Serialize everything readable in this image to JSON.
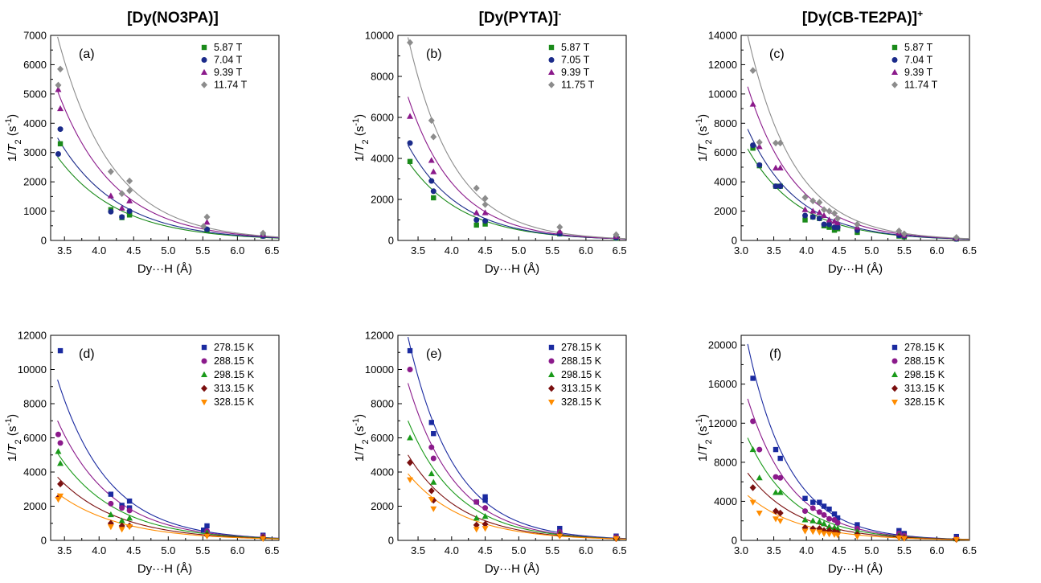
{
  "columns": [
    {
      "name": "[Dy(NO3PA)]",
      "sup": ""
    },
    {
      "name": "[Dy(PYTA)]",
      "sup": "-"
    },
    {
      "name": "[Dy(CB-TE2PA)]",
      "sup": "+"
    }
  ],
  "colors": {
    "5.87 T": "#1a8a1a",
    "7.04 T": "#1b2b8a",
    "7.05 T": "#1b2b8a",
    "9.39 T": "#8b1a8b",
    "11.74 T": "#8c8c8c",
    "11.75 T": "#8c8c8c",
    "278.15 K": "#1a2aa0",
    "288.15 K": "#8b1a8b",
    "298.15 K": "#1a9a1a",
    "313.15 K": "#7a0f0f",
    "328.15 K": "#ff8c00"
  },
  "chart_data": [
    {
      "type": "scatter",
      "panel": "(a)",
      "xlabel": "Dy···H (Å)",
      "ylabel": "1/T2 (s-1)",
      "xlim": [
        3.3,
        6.6
      ],
      "ylim": [
        0,
        7000
      ],
      "xticks": [
        "3.5",
        "4.0",
        "4.5",
        "5.0",
        "5.5",
        "6.0",
        "6.5"
      ],
      "yticks": [
        "0",
        "1000",
        "2000",
        "3000",
        "4000",
        "5000",
        "6000",
        "7000"
      ],
      "series": [
        {
          "name": "5.87 T",
          "marker": "square",
          "x": [
            3.44,
            4.17,
            4.33,
            4.44,
            4.44,
            5.56,
            6.37
          ],
          "y": [
            3300,
            1050,
            780,
            870,
            950,
            350,
            150
          ],
          "fit": [
            3.4,
            2850,
            1.12
          ]
        },
        {
          "name": "7.04 T",
          "marker": "circle",
          "x": [
            3.41,
            3.44,
            4.17,
            4.33,
            4.44,
            5.56,
            6.37
          ],
          "y": [
            2950,
            3800,
            980,
            800,
            1000,
            380,
            150
          ],
          "fit": [
            3.4,
            3500,
            1.15
          ]
        },
        {
          "name": "9.39 T",
          "marker": "triangle",
          "x": [
            3.41,
            3.44,
            4.17,
            4.33,
            4.44,
            5.56,
            6.37
          ],
          "y": [
            5150,
            4500,
            1520,
            1100,
            1350,
            620,
            200
          ],
          "fit": [
            3.4,
            5100,
            1.22
          ]
        },
        {
          "name": "11.74 T",
          "marker": "diamond",
          "x": [
            3.41,
            3.44,
            4.17,
            4.33,
            4.44,
            4.44,
            5.51,
            5.56,
            6.37
          ],
          "y": [
            5300,
            5850,
            2350,
            1600,
            1700,
            2030,
            480,
            800,
            250
          ],
          "fit": [
            3.4,
            6950,
            1.28
          ]
        }
      ]
    },
    {
      "type": "scatter",
      "panel": "(b)",
      "xlabel": "Dy···H (Å)",
      "ylabel": "1/T2 (s-1)",
      "xlim": [
        3.2,
        6.6
      ],
      "ylim": [
        0,
        10000
      ],
      "xticks": [
        "3.5",
        "4.0",
        "4.5",
        "5.0",
        "5.5",
        "6.0",
        "6.5"
      ],
      "yticks": [
        "0",
        "2000",
        "4000",
        "6000",
        "8000",
        "10000"
      ],
      "series": [
        {
          "name": "5.87 T",
          "marker": "square",
          "x": [
            3.38,
            3.73,
            4.37,
            4.5,
            5.61,
            6.45
          ],
          "y": [
            3850,
            2080,
            750,
            800,
            320,
            110
          ],
          "fit": [
            3.35,
            3850,
            1.22
          ]
        },
        {
          "name": "7.05 T",
          "marker": "circle",
          "x": [
            3.38,
            3.7,
            3.73,
            4.37,
            4.5,
            5.61,
            6.45
          ],
          "y": [
            4750,
            2900,
            2400,
            1000,
            950,
            330,
            130
          ],
          "fit": [
            3.35,
            4650,
            1.28
          ]
        },
        {
          "name": "9.39 T",
          "marker": "triangle",
          "x": [
            3.38,
            3.7,
            3.73,
            4.37,
            4.5,
            5.61,
            6.45
          ],
          "y": [
            6050,
            3900,
            3350,
            1350,
            1350,
            450,
            200
          ],
          "fit": [
            3.35,
            7000,
            1.4
          ]
        },
        {
          "name": "11.75 T",
          "marker": "diamond",
          "x": [
            3.38,
            3.7,
            3.73,
            4.37,
            4.5,
            4.5,
            5.61,
            6.45
          ],
          "y": [
            9650,
            5850,
            5050,
            2550,
            2050,
            1750,
            650,
            280
          ],
          "fit": [
            3.35,
            9900,
            1.45
          ]
        }
      ]
    },
    {
      "type": "scatter",
      "panel": "(c)",
      "xlabel": "Dy···H (Å)",
      "ylabel": "1/T2 (s-1)",
      "xlim": [
        3.0,
        6.5
      ],
      "ylim": [
        0,
        14000
      ],
      "xticks": [
        "3.0",
        "3.5",
        "4.0",
        "4.5",
        "5.0",
        "5.5",
        "6.0",
        "6.5"
      ],
      "yticks": [
        "0",
        "2000",
        "4000",
        "6000",
        "8000",
        "10000",
        "12000",
        "14000"
      ],
      "series": [
        {
          "name": "5.87 T",
          "marker": "square",
          "x": [
            3.18,
            3.28,
            3.53,
            3.6,
            3.98,
            4.1,
            4.2,
            4.27,
            4.35,
            4.43,
            4.48,
            4.78,
            5.42,
            5.5,
            6.3
          ],
          "y": [
            6300,
            5100,
            3700,
            3700,
            1400,
            1600,
            1500,
            1000,
            900,
            700,
            800,
            550,
            300,
            250,
            100
          ],
          "fit": [
            3.1,
            6250,
            1.25
          ]
        },
        {
          "name": "7.04 T",
          "marker": "circle",
          "x": [
            3.18,
            3.28,
            3.53,
            3.6,
            3.98,
            4.1,
            4.2,
            4.27,
            4.35,
            4.43,
            4.48,
            4.78,
            5.42,
            5.5,
            6.3
          ],
          "y": [
            6500,
            5150,
            3700,
            3700,
            1700,
            1600,
            1500,
            1100,
            1100,
            900,
            900,
            700,
            350,
            300,
            100
          ],
          "fit": [
            3.1,
            7600,
            1.3
          ]
        },
        {
          "name": "9.39 T",
          "marker": "triangle",
          "x": [
            3.18,
            3.28,
            3.53,
            3.6,
            3.98,
            4.1,
            4.2,
            4.27,
            4.35,
            4.43,
            4.48,
            4.78,
            5.42,
            5.5,
            6.3
          ],
          "y": [
            9300,
            6400,
            4950,
            4950,
            2100,
            2000,
            1900,
            1700,
            1400,
            1300,
            1200,
            900,
            500,
            350,
            150
          ],
          "fit": [
            3.1,
            10500,
            1.35
          ]
        },
        {
          "name": "11.74 T",
          "marker": "diamond",
          "x": [
            3.18,
            3.28,
            3.53,
            3.6,
            3.98,
            4.1,
            4.2,
            4.27,
            4.35,
            4.43,
            4.48,
            4.78,
            5.42,
            5.5,
            6.3
          ],
          "y": [
            11600,
            6700,
            6650,
            6650,
            2950,
            2700,
            2600,
            2100,
            2000,
            1850,
            1500,
            1100,
            650,
            450,
            200
          ],
          "fit": [
            3.1,
            14000,
            1.4
          ]
        }
      ]
    },
    {
      "type": "scatter",
      "panel": "(d)",
      "xlabel": "Dy···H (Å)",
      "ylabel": "1/T2 (s-1)",
      "xlim": [
        3.3,
        6.6
      ],
      "ylim": [
        0,
        12000
      ],
      "xticks": [
        "3.5",
        "4.0",
        "4.5",
        "5.0",
        "5.5",
        "6.0",
        "6.5"
      ],
      "yticks": [
        "0",
        "2000",
        "4000",
        "6000",
        "8000",
        "10000",
        "12000"
      ],
      "series": [
        {
          "name": "278.15 K",
          "marker": "square",
          "x": [
            3.44,
            4.17,
            4.33,
            4.44,
            4.44,
            5.51,
            5.56,
            6.37
          ],
          "y": [
            11100,
            2700,
            2050,
            1900,
            2300,
            600,
            850,
            300
          ],
          "fit": [
            3.4,
            9400,
            1.35
          ]
        },
        {
          "name": "288.15 K",
          "marker": "circle",
          "x": [
            3.41,
            3.44,
            4.17,
            4.33,
            4.44,
            5.56,
            6.37
          ],
          "y": [
            6200,
            5700,
            2150,
            1900,
            1750,
            550,
            250
          ],
          "fit": [
            3.4,
            7000,
            1.28
          ]
        },
        {
          "name": "298.15 K",
          "marker": "triangle",
          "x": [
            3.41,
            3.44,
            4.17,
            4.33,
            4.44,
            5.56,
            6.37
          ],
          "y": [
            5200,
            4500,
            1500,
            1150,
            1300,
            450,
            200
          ],
          "fit": [
            3.4,
            5100,
            1.2
          ]
        },
        {
          "name": "313.15 K",
          "marker": "diamond",
          "x": [
            3.41,
            3.44,
            4.17,
            4.33,
            4.44,
            5.56,
            6.37
          ],
          "y": [
            2500,
            3300,
            1000,
            850,
            850,
            300,
            150
          ],
          "fit": [
            3.4,
            3700,
            1.15
          ]
        },
        {
          "name": "328.15 K",
          "marker": "triangle-down",
          "x": [
            3.41,
            3.44,
            4.17,
            4.33,
            4.44,
            5.56,
            6.37
          ],
          "y": [
            2400,
            2600,
            800,
            650,
            800,
            250,
            100
          ],
          "fit": [
            3.4,
            2750,
            1.1
          ]
        }
      ]
    },
    {
      "type": "scatter",
      "panel": "(e)",
      "xlabel": "Dy···H (Å)",
      "ylabel": "1/T2 (s-1)",
      "xlim": [
        3.2,
        6.6
      ],
      "ylim": [
        0,
        12000
      ],
      "xticks": [
        "3.5",
        "4.0",
        "4.5",
        "5.0",
        "5.5",
        "6.0",
        "6.5"
      ],
      "yticks": [
        "0",
        "2000",
        "4000",
        "6000",
        "8000",
        "10000",
        "12000"
      ],
      "series": [
        {
          "name": "278.15 K",
          "marker": "square",
          "x": [
            3.38,
            3.7,
            3.73,
            4.37,
            4.5,
            4.5,
            5.61,
            6.45
          ],
          "y": [
            11100,
            6900,
            6250,
            2250,
            2550,
            2350,
            700,
            250
          ],
          "fit": [
            3.35,
            11900,
            1.45
          ]
        },
        {
          "name": "288.15 K",
          "marker": "circle",
          "x": [
            3.38,
            3.7,
            3.73,
            4.37,
            4.5,
            5.61,
            6.45
          ],
          "y": [
            10000,
            5450,
            4800,
            2250,
            1900,
            500,
            200
          ],
          "fit": [
            3.35,
            9200,
            1.42
          ]
        },
        {
          "name": "298.15 K",
          "marker": "triangle",
          "x": [
            3.38,
            3.7,
            3.73,
            4.37,
            4.5,
            5.61,
            6.45
          ],
          "y": [
            6000,
            3900,
            3400,
            1300,
            1400,
            400,
            150
          ],
          "fit": [
            3.35,
            7000,
            1.35
          ]
        },
        {
          "name": "313.15 K",
          "marker": "diamond",
          "x": [
            3.38,
            3.7,
            3.73,
            4.37,
            4.5,
            5.61,
            6.45
          ],
          "y": [
            4550,
            2900,
            2350,
            900,
            950,
            300,
            100
          ],
          "fit": [
            3.35,
            5000,
            1.28
          ]
        },
        {
          "name": "328.15 K",
          "marker": "triangle-down",
          "x": [
            3.38,
            3.7,
            3.73,
            4.37,
            4.5,
            5.61,
            6.45
          ],
          "y": [
            3550,
            2400,
            1850,
            650,
            700,
            250,
            100
          ],
          "fit": [
            3.35,
            3900,
            1.22
          ]
        }
      ]
    },
    {
      "type": "scatter",
      "panel": "(f)",
      "xlabel": "Dy···H (Å)",
      "ylabel": "1/T2 (s-1)",
      "xlim": [
        3.0,
        6.5
      ],
      "ylim": [
        0,
        21000
      ],
      "xticks": [
        "3.0",
        "3.5",
        "4.0",
        "4.5",
        "5.0",
        "5.5",
        "6.0",
        "6.5"
      ],
      "yticks": [
        "0",
        "4000",
        "8000",
        "12000",
        "16000",
        "20000"
      ],
      "series": [
        {
          "name": "278.15 K",
          "marker": "square",
          "x": [
            3.18,
            3.53,
            3.6,
            3.98,
            4.1,
            4.2,
            4.27,
            4.35,
            4.43,
            4.48,
            4.78,
            5.42,
            5.5,
            6.3
          ],
          "y": [
            16600,
            9300,
            8400,
            4300,
            3900,
            3900,
            3500,
            3200,
            2700,
            2300,
            1600,
            1000,
            700,
            400
          ],
          "fit": [
            3.1,
            20100,
            1.55
          ]
        },
        {
          "name": "288.15 K",
          "marker": "circle",
          "x": [
            3.18,
            3.28,
            3.53,
            3.6,
            3.98,
            4.1,
            4.2,
            4.27,
            4.35,
            4.43,
            4.48,
            4.78,
            5.42,
            5.5,
            6.3
          ],
          "y": [
            12200,
            9300,
            6500,
            6400,
            3000,
            3300,
            2900,
            2600,
            2200,
            2100,
            1800,
            1200,
            700,
            500,
            200
          ],
          "fit": [
            3.1,
            14500,
            1.48
          ]
        },
        {
          "name": "298.15 K",
          "marker": "triangle",
          "x": [
            3.18,
            3.28,
            3.53,
            3.6,
            3.98,
            4.1,
            4.2,
            4.27,
            4.35,
            4.43,
            4.48,
            4.78,
            5.42,
            5.5,
            6.3
          ],
          "y": [
            9300,
            6400,
            4900,
            4900,
            2100,
            2000,
            1900,
            1700,
            1400,
            1300,
            1200,
            900,
            500,
            350,
            150
          ],
          "fit": [
            3.1,
            10500,
            1.4
          ]
        },
        {
          "name": "313.15 K",
          "marker": "diamond",
          "x": [
            3.18,
            3.53,
            3.6,
            3.98,
            4.1,
            4.2,
            4.27,
            4.35,
            4.43,
            4.48,
            4.78,
            5.42,
            5.5,
            6.3
          ],
          "y": [
            5400,
            3000,
            2800,
            1300,
            1200,
            1200,
            1000,
            1000,
            900,
            800,
            600,
            350,
            250,
            100
          ],
          "fit": [
            3.1,
            6900,
            1.3
          ]
        },
        {
          "name": "328.15 K",
          "marker": "triangle-down",
          "x": [
            3.18,
            3.28,
            3.53,
            3.6,
            3.98,
            4.1,
            4.2,
            4.27,
            4.35,
            4.43,
            4.48,
            4.78,
            5.42,
            5.5,
            6.3
          ],
          "y": [
            3900,
            2800,
            2200,
            2000,
            950,
            900,
            850,
            700,
            650,
            600,
            550,
            400,
            250,
            200,
            80
          ],
          "fit": [
            3.1,
            4600,
            1.25
          ]
        }
      ]
    }
  ]
}
